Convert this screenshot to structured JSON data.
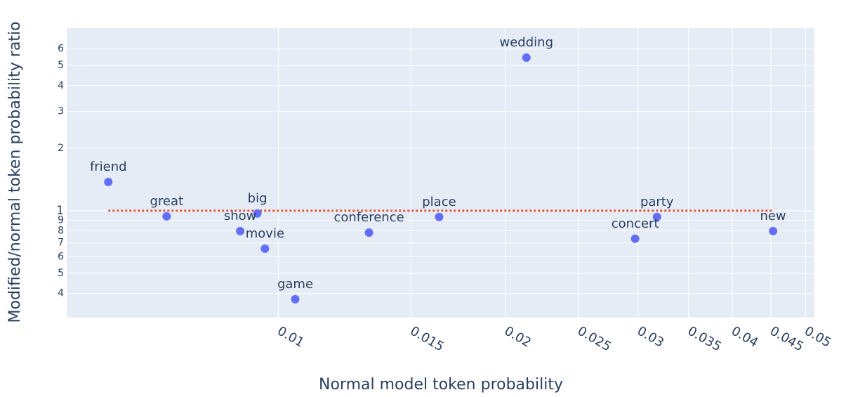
{
  "chart_data": {
    "type": "scatter",
    "x_label": "Normal model token probability",
    "y_label": "Modified/normal token probability ratio",
    "log_x": true,
    "log_y": true,
    "grid": true,
    "categories": [
      "friend",
      "great",
      "show",
      "big",
      "movie",
      "game",
      "conference",
      "place",
      "wedding",
      "concert",
      "party",
      "new"
    ],
    "x": [
      0.00595,
      0.00711,
      0.0089,
      0.00938,
      0.0096,
      0.01053,
      0.01319,
      0.01634,
      0.02133,
      0.02973,
      0.03178,
      0.0453
    ],
    "values": [
      1.375,
      0.94,
      0.798,
      0.97,
      0.657,
      0.375,
      0.785,
      0.933,
      5.45,
      0.733,
      0.933,
      0.798
    ],
    "color": "#636efa",
    "reference_line": {
      "x": [
        0.00595,
        0.0453
      ],
      "y": [
        1,
        1
      ],
      "color": "#e5533a"
    },
    "xlim": [
      0.00524,
      0.0514
    ],
    "ylim": [
      0.306,
      7.56
    ],
    "xticks": [
      0.01,
      0.015,
      0.02,
      0.025,
      0.03,
      0.035,
      0.04,
      0.045,
      0.05
    ],
    "yticks": [
      {
        "value": 0.4,
        "label": "4"
      },
      {
        "value": 0.5,
        "label": "5"
      },
      {
        "value": 0.6,
        "label": "6"
      },
      {
        "value": 0.7,
        "label": "7"
      },
      {
        "value": 0.8,
        "label": "8"
      },
      {
        "value": 0.9,
        "label": "9"
      },
      1,
      2,
      3,
      4,
      5,
      6
    ]
  }
}
